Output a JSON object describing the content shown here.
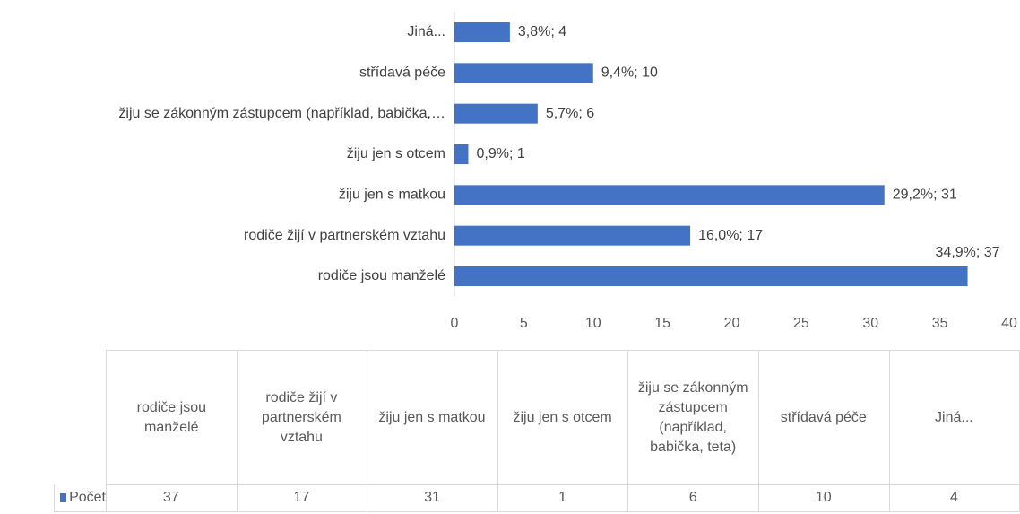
{
  "chart_data": {
    "type": "barh",
    "categories": [
      "rodiče jsou manželé",
      "rodiče žijí v partnerském vztahu",
      "žiju jen s matkou",
      "žiju jen s otcem",
      "žiju se zákonným zástupcem (například, babička, teta)",
      "střídavá péče",
      "Jiná..."
    ],
    "axis_labels": [
      "rodiče jsou manželé",
      "rodiče žijí v partnerském vztahu",
      "žiju jen s matkou",
      "žiju jen s otcem",
      "žiju se zákonným zástupcem (například, babička,…",
      "střídavá péče",
      "Jiná..."
    ],
    "series": [
      {
        "name": "Počet",
        "color": "#4472c4",
        "values": [
          37,
          17,
          31,
          1,
          6,
          10,
          4
        ],
        "value_labels": [
          "34,9%; 37",
          "16,0%; 17",
          "29,2%; 31",
          "0,9%; 1",
          "5,7%; 6",
          "9,4%; 10",
          "3,8%; 4"
        ]
      }
    ],
    "xlim": [
      0,
      40
    ],
    "xticks": [
      0,
      5,
      10,
      15,
      20,
      25,
      30,
      35,
      40
    ],
    "grid": false,
    "data_table": true
  }
}
